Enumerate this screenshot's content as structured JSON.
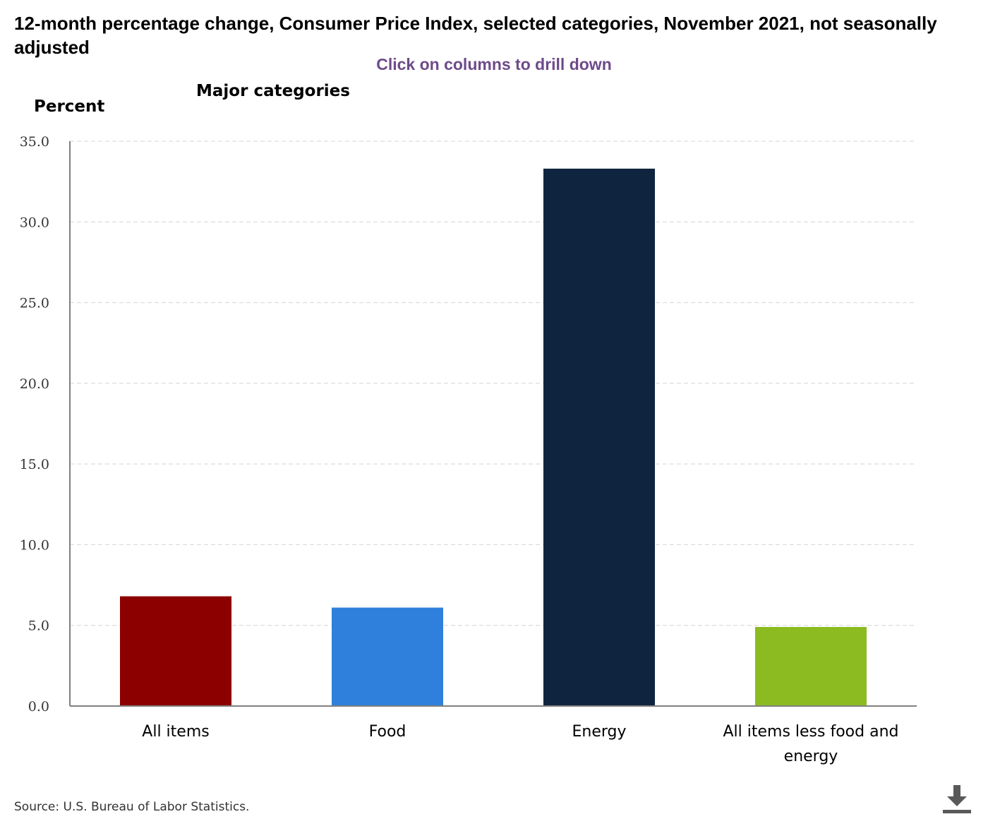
{
  "chart_data": {
    "type": "bar",
    "title": "12-month percentage change, Consumer Price Index, selected categories, November 2021, not seasonally adjusted",
    "subtitle": "Major categories",
    "instruction": "Click on columns to drill down",
    "xlabel": "",
    "ylabel": "Percent",
    "ylim": [
      0,
      35
    ],
    "yticks": [
      0,
      5,
      10,
      15,
      20,
      25,
      30,
      35
    ],
    "ytick_labels": [
      "0.0",
      "5.0",
      "10.0",
      "15.0",
      "20.0",
      "25.0",
      "30.0",
      "35.0"
    ],
    "grid": true,
    "categories": [
      "All items",
      "Food",
      "Energy",
      "All items less food and energy"
    ],
    "category_lines": [
      [
        "All items"
      ],
      [
        "Food"
      ],
      [
        "Energy"
      ],
      [
        "All items less food and",
        "energy"
      ]
    ],
    "values": [
      6.8,
      6.1,
      33.3,
      4.9
    ],
    "colors": [
      "#8c0000",
      "#2f80dc",
      "#0f243e",
      "#8bbb21"
    ]
  },
  "source": "Source: U.S. Bureau of Labor Statistics.",
  "download": {
    "icon": "download-icon",
    "color": "#595959"
  }
}
